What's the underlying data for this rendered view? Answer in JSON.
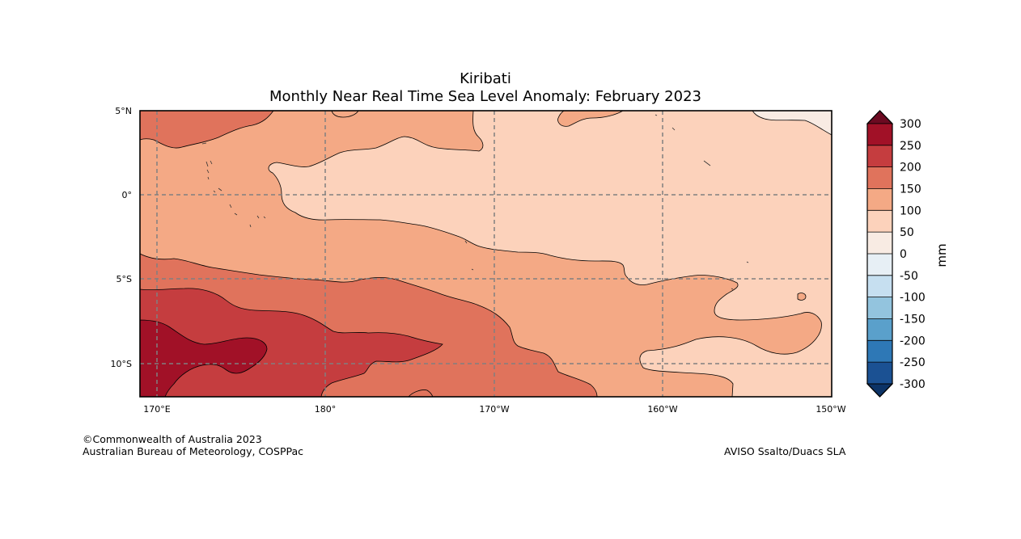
{
  "title": "Kiribati",
  "subtitle": "Monthly Near Real Time Sea Level Anomaly: February 2023",
  "lat_labels": [
    "5°N",
    "0°",
    "5°S",
    "10°S"
  ],
  "lon_labels": [
    "170°E",
    "180°",
    "170°W",
    "160°W",
    "150°W"
  ],
  "colorbar": {
    "unit": "mm",
    "ticks": [
      "300",
      "250",
      "200",
      "150",
      "100",
      "50",
      "0",
      "-50",
      "-100",
      "-150",
      "-200",
      "-250",
      "-300"
    ],
    "colors": [
      "#a11127",
      "#c53d3f",
      "#e0735c",
      "#f4a985",
      "#fcd2bb",
      "#f8ebe3",
      "#e7eff5",
      "#c6dff0",
      "#93c4de",
      "#5aa0cb",
      "#2e78b6",
      "#1b5193"
    ],
    "top_arrow_color": "#6c0a21",
    "bottom_arrow_color": "#0c3366"
  },
  "footer": {
    "copyright": "©Commonwealth of Australia 2023",
    "org": "Australian Bureau of Meteorology, COSPPac",
    "source": "AVISO Ssalto/Duacs SLA"
  }
}
